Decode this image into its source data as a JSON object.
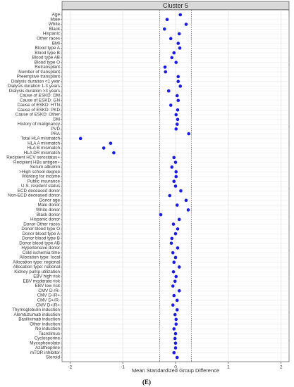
{
  "chart_data": {
    "type": "dot",
    "title": "Cluster 5",
    "categories": [
      "Age",
      "Male",
      "White",
      "Black",
      "Hispanic",
      "Other races",
      "BMI",
      "Blood type A",
      "Blood type B",
      "Blood type AB",
      "Blood type O",
      "Retransplant",
      "Number of transplant",
      "Preemptive transplant",
      "Dialysis duration <1 year",
      "Dialysis duration 1-3 years",
      "Dialysis duration >3 years",
      "Cause of ESKD: DM",
      "Cause of ESKD: GN",
      "Cause of ESKD: HTN",
      "Cause of ESKD: PKD",
      "Cause of ESKD: Other",
      "DM",
      "History of malignancy",
      "PVD",
      "PRA",
      "Total HLA mismatch",
      "HLA A mismatch",
      "HLA B mismatch",
      "HLA DR mismatch",
      "Recipient HCV serostatus+",
      "Recipient HBs antigen+",
      "Serum albumin",
      ">High school degree",
      "Working for income",
      "Public insurance",
      "U.S. resident status",
      "ECD deceased donor",
      "Non-ECD deceased donor",
      "Donor age",
      "Male donor",
      "White donor",
      "Black donor",
      "Hispanic donor",
      "Donor Other races",
      "Donor blood type O",
      "Donor blood type A",
      "Donor blood type B",
      "Donor blood type AB",
      "Hypertensive donor",
      "Cold ischemia time",
      "Allocation type: local",
      "Allocation type: regional",
      "Allocation type: national",
      "Kidney pump utilization",
      "EBV high risk",
      "EBV moderate risk",
      "EBV low risk",
      "CMV D-/R-",
      "CMV D-/R+",
      "CMV D+/R-",
      "CMV D+/R+",
      "Thymoglobulin induction",
      "Alemtuzumab induction",
      "Basiliximab induction",
      "Other induction",
      "No induction",
      "Tacrolimus",
      "Cyclosporine",
      "Mycophenolate",
      "Azathioprine",
      "mTOR inhibitor",
      "Steroid"
    ],
    "values": [
      0.09,
      -0.16,
      0.2,
      -0.21,
      0.07,
      -0.09,
      0.05,
      0.08,
      -0.03,
      -0.07,
      0.01,
      -0.2,
      -0.19,
      0.05,
      0.05,
      0.09,
      -0.13,
      0.03,
      0.05,
      -0.09,
      0.04,
      0.01,
      0.04,
      0.03,
      0.01,
      0.25,
      -1.8,
      -1.23,
      -1.36,
      -1.17,
      -0.03,
      0,
      -0.07,
      0.01,
      0.01,
      -0.03,
      0,
      0.1,
      -0.11,
      0.2,
      0.03,
      0.24,
      -0.28,
      0.07,
      -0.04,
      0.04,
      0,
      -0.07,
      -0.08,
      0.04,
      -0.05,
      0,
      -0.03,
      0.07,
      -0.04,
      0.01,
      -0.01,
      -0.05,
      0.07,
      -0.03,
      0.03,
      -0.05,
      0.03,
      -0.01,
      0.01,
      0.01,
      -0.03,
      0,
      -0.01,
      0,
      0,
      -0.03,
      0.03
    ],
    "color": "#1c1cdc",
    "x_label": "Mean Standardized Group Difference",
    "xlim": [
      -2.15,
      2.15
    ],
    "xticks": [
      -2,
      -1,
      0,
      1,
      2
    ],
    "ref_lines": [
      -0.3,
      0.3
    ],
    "grid": true,
    "caption": "(E)"
  }
}
